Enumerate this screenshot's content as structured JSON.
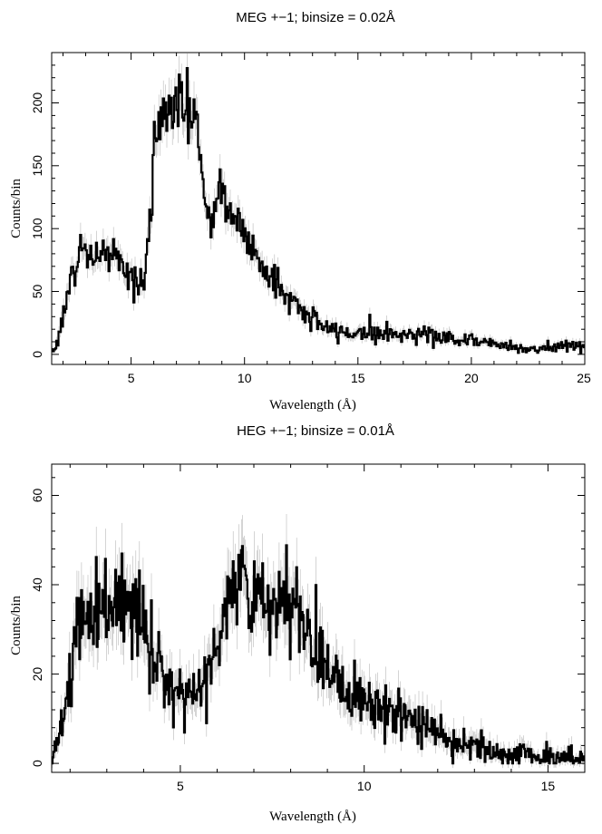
{
  "chart_data": [
    {
      "id": "meg",
      "type": "line",
      "title": "MEG +−1; binsize = 0.02Å",
      "xlabel": "Wavelength (Å)",
      "ylabel": "Counts/bin",
      "xlim": [
        1.5,
        25
      ],
      "ylim": [
        -8,
        240
      ],
      "xticks": [
        5,
        10,
        15,
        20,
        25
      ],
      "yticks": [
        0,
        50,
        100,
        150,
        200
      ],
      "grid": false,
      "binsize": 0.02,
      "series": [
        {
          "style": "step-with-error-bars",
          "x": [
            1.5,
            1.7,
            2.0,
            2.3,
            2.6,
            2.8,
            3.0,
            3.3,
            3.6,
            4.0,
            4.3,
            4.6,
            5.0,
            5.3,
            5.6,
            5.8,
            6.0,
            6.2,
            6.5,
            6.8,
            7.0,
            7.3,
            7.6,
            7.9,
            8.1,
            8.3,
            8.5,
            8.7,
            8.9,
            9.2,
            9.6,
            10.0,
            10.5,
            11.0,
            11.5,
            12.0,
            12.5,
            13.0,
            13.5,
            14.0,
            15.0,
            15.5,
            16.0,
            17.0,
            17.8,
            18.5,
            19.0,
            20.0,
            21.0,
            22.0,
            22.5,
            23.0,
            23.5,
            24.0,
            25.0
          ],
          "y": [
            2,
            8,
            30,
            55,
            72,
            88,
            78,
            80,
            75,
            84,
            80,
            70,
            62,
            52,
            62,
            90,
            160,
            180,
            195,
            198,
            205,
            190,
            200,
            185,
            150,
            110,
            92,
            125,
            135,
            118,
            108,
            95,
            80,
            65,
            55,
            44,
            35,
            28,
            22,
            18,
            17,
            19,
            17,
            15,
            18,
            14,
            13,
            11,
            9,
            6,
            4,
            3,
            6,
            8,
            6
          ]
        }
      ]
    },
    {
      "id": "heg",
      "type": "line",
      "title": "HEG +−1; binsize = 0.01Å",
      "xlabel": "Wavelength (Å)",
      "ylabel": "Counts/bin",
      "xlim": [
        1.5,
        16
      ],
      "ylim": [
        -2,
        67
      ],
      "xticks": [
        5,
        10,
        15
      ],
      "yticks": [
        0,
        20,
        40,
        60
      ],
      "grid": false,
      "binsize": 0.01,
      "series": [
        {
          "style": "step-with-error-bars",
          "x": [
            1.5,
            1.7,
            1.9,
            2.1,
            2.4,
            2.7,
            3.0,
            3.3,
            3.6,
            3.9,
            4.1,
            4.3,
            4.6,
            4.9,
            5.2,
            5.5,
            5.7,
            5.9,
            6.1,
            6.4,
            6.7,
            7.0,
            7.3,
            7.6,
            7.9,
            8.2,
            8.5,
            8.8,
            9.1,
            9.5,
            10.0,
            10.5,
            11.0,
            11.5,
            12.0,
            12.5,
            13.0,
            13.5,
            14.0,
            14.5,
            15.0,
            15.5,
            16.0
          ],
          "y": [
            0.5,
            5,
            15,
            26,
            33,
            35,
            37,
            36,
            34,
            33,
            29,
            22,
            19,
            17,
            16,
            16,
            18,
            24,
            33,
            39,
            41,
            38,
            34,
            33,
            35,
            34,
            30,
            25,
            21,
            17,
            15,
            13,
            10,
            8,
            7,
            5,
            4,
            3,
            2,
            2,
            1.5,
            1.2,
            1
          ]
        }
      ]
    }
  ]
}
